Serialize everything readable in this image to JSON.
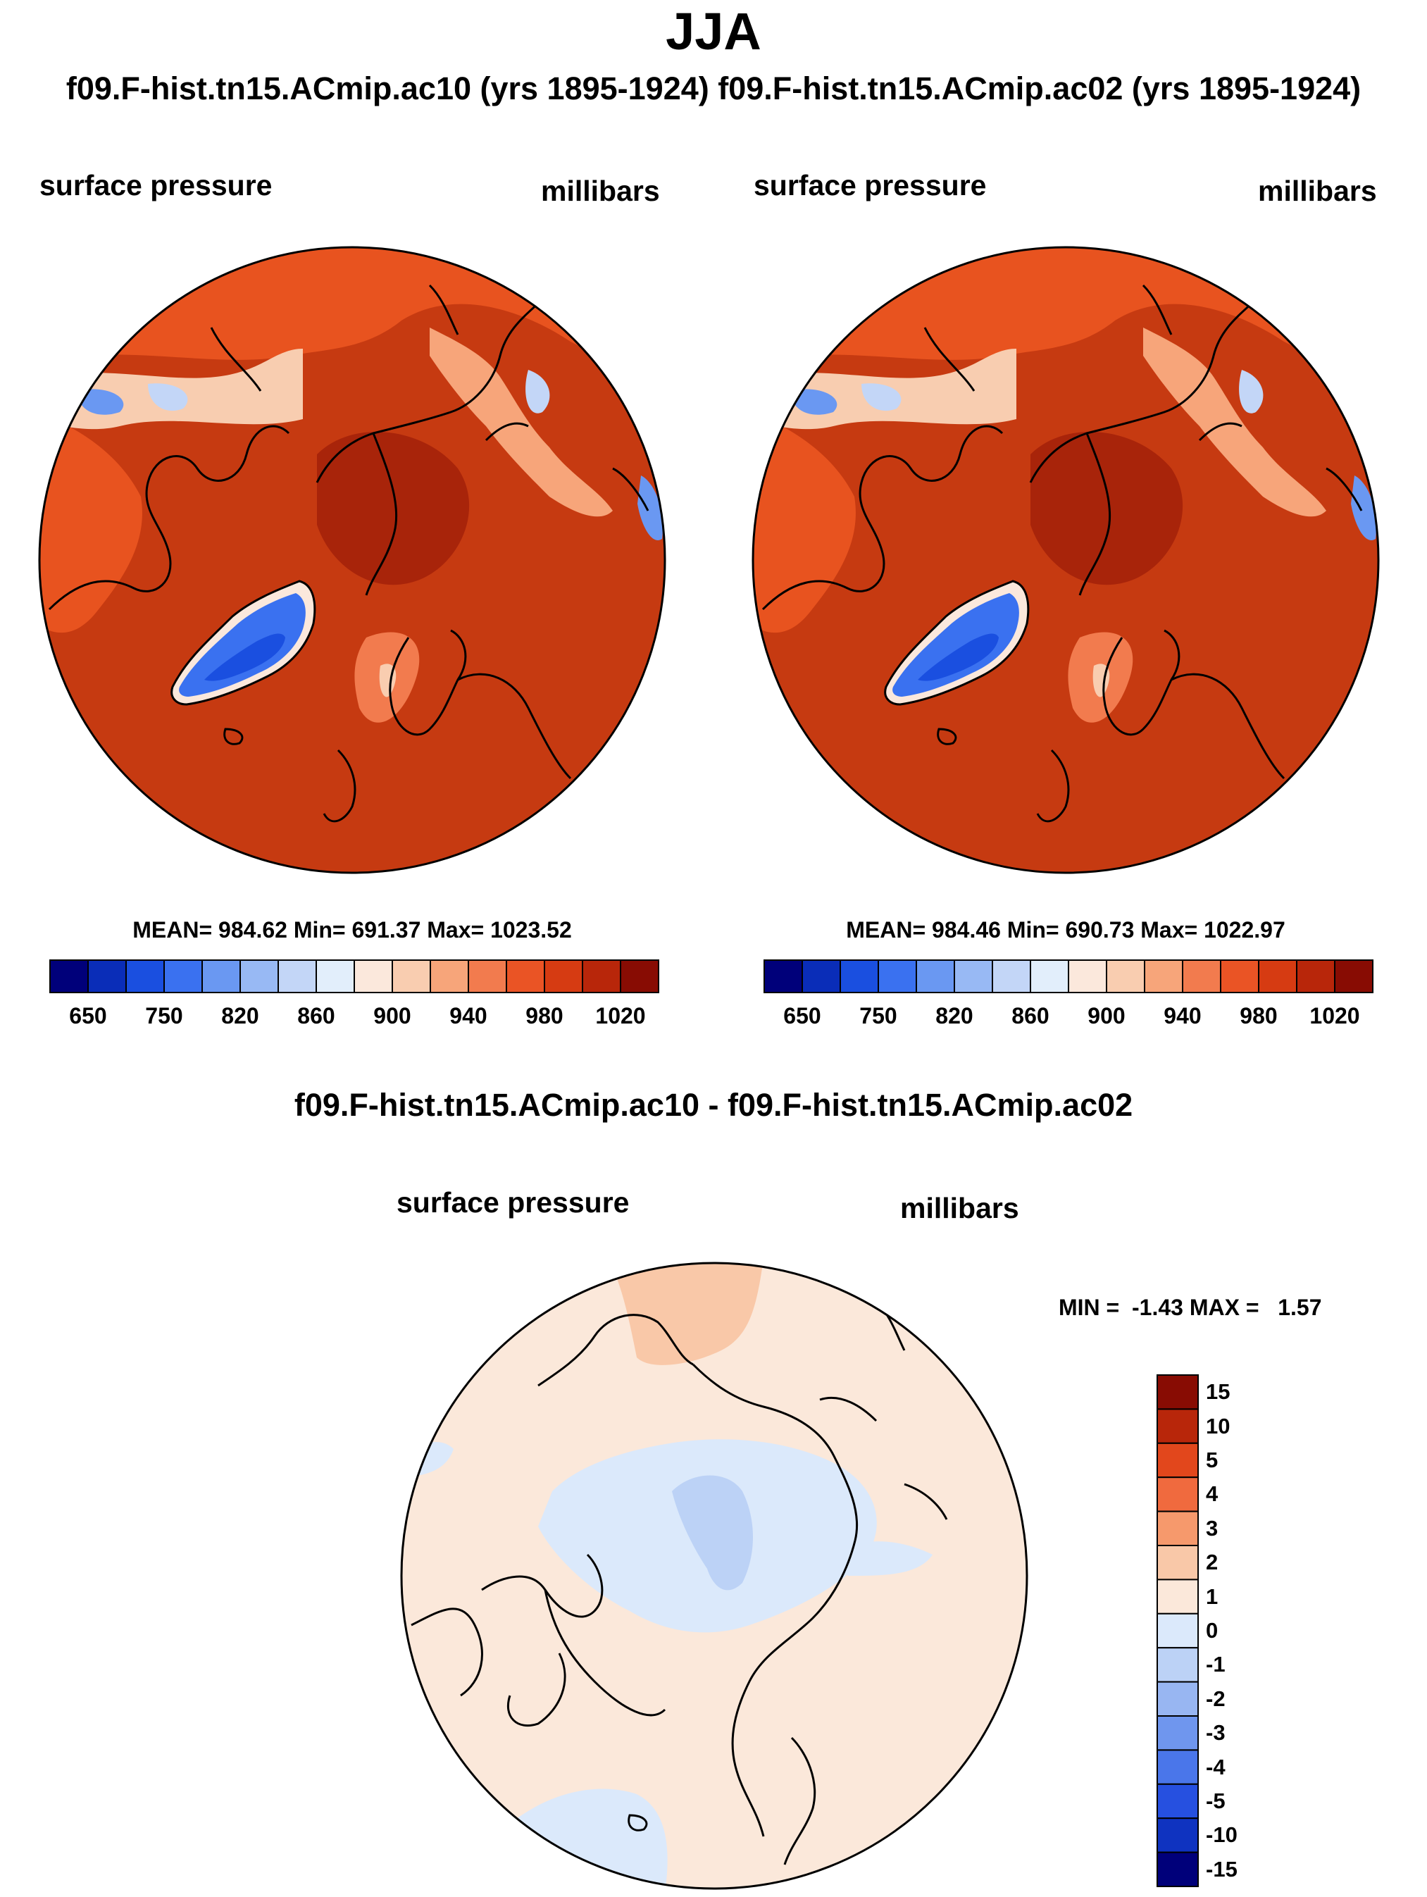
{
  "page": {
    "title": "JJA",
    "subtitle": "f09.F-hist.tn15.ACmip.ac10 (yrs 1895-1924)  f09.F-hist.tn15.ACmip.ac02 (yrs 1895-1924)"
  },
  "panels": [
    {
      "case": "f09.F-hist.tn15.ACmip.ac10 (yrs 1895-1924)",
      "variable": "surface pressure",
      "units": "millibars",
      "stats": "MEAN= 984.62  Min= 691.37  Max= 1023.52",
      "mean": 984.62,
      "min": 691.37,
      "max": 1023.52
    },
    {
      "case": "f09.F-hist.tn15.ACmip.ac02 (yrs 1895-1924)",
      "variable": "surface pressure",
      "units": "millibars",
      "stats": "MEAN= 984.46  Min= 690.73  Max= 1022.97",
      "mean": 984.46,
      "min": 690.73,
      "max": 1022.97
    }
  ],
  "diff_panel": {
    "title": "f09.F-hist.tn15.ACmip.ac10 - f09.F-hist.tn15.ACmip.ac02",
    "variable": "surface pressure",
    "units": "millibars",
    "minmax": "MIN =  -1.43 MAX =   1.57",
    "min": -1.43,
    "max": 1.57
  },
  "colorbar_main": {
    "colors": [
      "#00007a",
      "#0a2db8",
      "#1a4fe0",
      "#3a71f0",
      "#6a98f2",
      "#98b9f4",
      "#c3d6f7",
      "#e2eefb",
      "#fbe8dc",
      "#f9cdb0",
      "#f7a57a",
      "#f27b4e",
      "#ea5425",
      "#d63b12",
      "#b8260a",
      "#880c03"
    ],
    "labels": [
      "650",
      "750",
      "820",
      "860",
      "900",
      "940",
      "980",
      "1020"
    ]
  },
  "colorbar_diff": {
    "colors": [
      "#880c03",
      "#b8260a",
      "#e2471c",
      "#f06a3e",
      "#f6996c",
      "#f9c8a8",
      "#fbe8da",
      "#dbe9fb",
      "#bcd2f6",
      "#98b6f2",
      "#6f96ee",
      "#4a76ea",
      "#2650e0",
      "#0f33c0",
      "#00007a"
    ],
    "labels": [
      "15",
      "10",
      "5",
      "4",
      "3",
      "2",
      "1",
      "0",
      "-1",
      "-2",
      "-3",
      "-4",
      "-5",
      "-10",
      "-15"
    ]
  },
  "colors": {
    "background": "#ffffff",
    "text": "#000000",
    "map_base_main": "#c63a11",
    "map_base_diff": "#fbe8da"
  }
}
